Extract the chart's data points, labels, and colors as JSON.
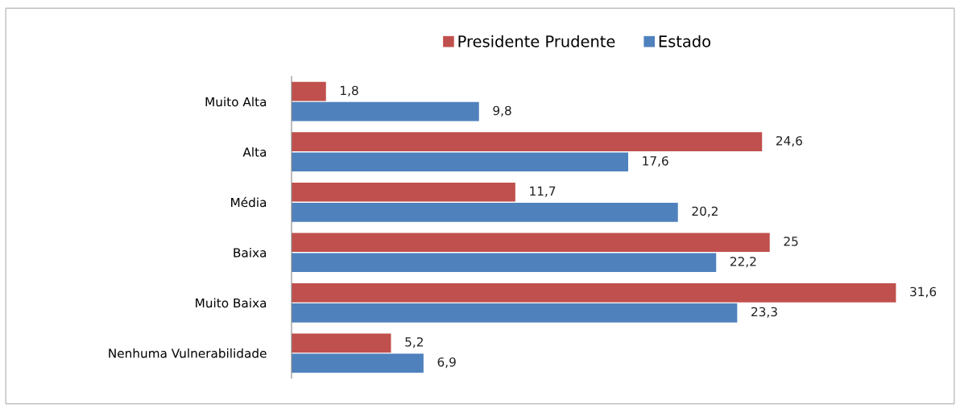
{
  "chart_data": {
    "type": "bar",
    "orientation": "horizontal",
    "categories": [
      "Muito Alta",
      "Alta",
      "Média",
      "Baixa",
      "Muito Baixa",
      "Nenhuma Vulnerabilidade"
    ],
    "series": [
      {
        "name": "Presidente Prudente",
        "color": "#c0504d",
        "values": [
          1.8,
          24.6,
          11.7,
          25,
          31.6,
          5.2
        ],
        "value_labels": [
          "1,8",
          "24,6",
          "11,7",
          "25",
          "31,6",
          "5,2"
        ]
      },
      {
        "name": "Estado",
        "color": "#4f81bd",
        "values": [
          9.8,
          17.6,
          20.2,
          22.2,
          23.3,
          6.9
        ],
        "value_labels": [
          "9,8",
          "17,6",
          "20,2",
          "22,2",
          "23,3",
          "6,9"
        ]
      }
    ],
    "legend": "top",
    "grid": false,
    "tick_labels": "y"
  }
}
